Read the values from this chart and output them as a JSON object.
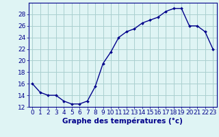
{
  "hours": [
    0,
    1,
    2,
    3,
    4,
    5,
    6,
    7,
    8,
    9,
    10,
    11,
    12,
    13,
    14,
    15,
    16,
    17,
    18,
    19,
    20,
    21,
    22,
    23
  ],
  "temperatures": [
    16.0,
    14.5,
    14.0,
    14.0,
    13.0,
    12.5,
    12.5,
    13.0,
    15.5,
    19.5,
    21.5,
    24.0,
    25.0,
    25.5,
    26.5,
    27.0,
    27.5,
    28.5,
    29.0,
    29.0,
    26.0,
    26.0,
    25.0,
    22.0
  ],
  "line_color": "#00008b",
  "marker": "D",
  "marker_size": 2,
  "bg_color": "#dff4f4",
  "grid_color": "#aacfcf",
  "xlabel": "Graphe des températures (°c)",
  "ylim": [
    12,
    30
  ],
  "yticks": [
    12,
    14,
    16,
    18,
    20,
    22,
    24,
    26,
    28
  ],
  "xticks": [
    0,
    1,
    2,
    3,
    4,
    5,
    6,
    7,
    8,
    9,
    10,
    11,
    12,
    13,
    14,
    15,
    16,
    17,
    18,
    19,
    20,
    21,
    22,
    23
  ],
  "axis_color": "#00008b",
  "font_size": 6.5,
  "xlabel_fontsize": 7.5,
  "linewidth": 1.0
}
